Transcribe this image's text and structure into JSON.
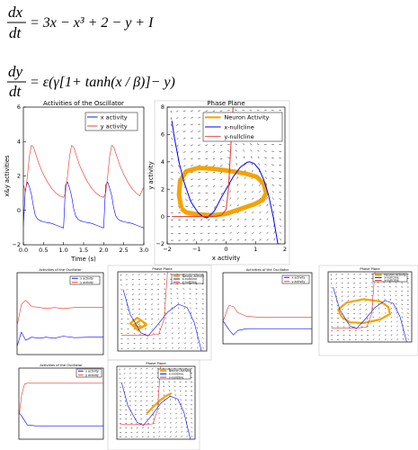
{
  "equations": {
    "eq1_lhs_num": "dx",
    "eq1_lhs_den": "dt",
    "eq1_rhs": "= 3x − x³ + 2 − y + I",
    "eq2_lhs_num": "dy",
    "eq2_lhs_den": "dt",
    "eq2_rhs": "= ε(γ[1+ tanh(x / β)]− y)"
  },
  "colors": {
    "x_activity": "#0000ff",
    "y_activity": "#e8312a",
    "neuron_activity": "#f4a300",
    "x_nullcline": "#0000ff",
    "y_nullcline": "#e8312a",
    "arrows": "#000000",
    "axis": "#000000"
  },
  "chart_data": [
    {
      "id": "activities-main",
      "type": "line",
      "title": "Activities of the Oscillator",
      "xlabel": "Time (s)",
      "ylabel": "x&y activities",
      "xlim": [
        0.0,
        3.0
      ],
      "ylim": [
        -3,
        6
      ],
      "xticks": [
        "0.0",
        "0.5",
        "1.0",
        "1.5",
        "2.0",
        "2.5",
        "3.0"
      ],
      "yticks": [
        "−2",
        "0",
        "2",
        "4",
        "6"
      ],
      "legend": "top-right",
      "series": [
        {
          "name": "x activity",
          "color": "#0000ff",
          "x": [
            0.0,
            0.05,
            0.1,
            0.15,
            0.2,
            0.25,
            0.3,
            0.35,
            0.4,
            0.45,
            0.5,
            0.6,
            0.7,
            0.8,
            0.9,
            1.0,
            1.05,
            1.1,
            1.15,
            1.2,
            1.25,
            1.3,
            1.35,
            1.4,
            1.45,
            1.5,
            1.6,
            1.7,
            1.8,
            1.9,
            2.0,
            2.05,
            2.1,
            2.15,
            2.2,
            2.25,
            2.3,
            2.35,
            2.4,
            2.45,
            2.5,
            2.6,
            2.7,
            2.8,
            2.9,
            3.0
          ],
          "y": [
            -1.8,
            0.6,
            1.1,
            0.8,
            0.3,
            -0.5,
            -1.1,
            -1.3,
            -1.4,
            -1.45,
            -1.5,
            -1.55,
            -1.6,
            -1.7,
            -1.8,
            -1.9,
            0.9,
            1.1,
            0.7,
            0.2,
            -0.6,
            -1.1,
            -1.3,
            -1.4,
            -1.45,
            -1.5,
            -1.55,
            -1.6,
            -1.7,
            -1.8,
            -1.9,
            0.9,
            1.1,
            0.7,
            0.2,
            -0.6,
            -1.1,
            -1.3,
            -1.4,
            -1.45,
            -1.5,
            -1.55,
            -1.6,
            -1.7,
            -1.8,
            -1.9
          ]
        },
        {
          "name": "y activity",
          "color": "#e8312a",
          "x": [
            0.0,
            0.05,
            0.1,
            0.15,
            0.2,
            0.25,
            0.3,
            0.35,
            0.4,
            0.5,
            0.6,
            0.7,
            0.8,
            0.9,
            1.0,
            1.05,
            1.1,
            1.15,
            1.2,
            1.25,
            1.3,
            1.35,
            1.4,
            1.5,
            1.6,
            1.7,
            1.8,
            1.9,
            2.0,
            2.05,
            2.1,
            2.15,
            2.2,
            2.25,
            2.3,
            2.35,
            2.4,
            2.5,
            2.6,
            2.7,
            2.8,
            2.9,
            3.0
          ],
          "y": [
            1.0,
            0.4,
            1.5,
            2.8,
            3.5,
            3.4,
            3.0,
            2.6,
            2.2,
            1.6,
            1.1,
            0.7,
            0.4,
            0.2,
            0.1,
            0.4,
            1.5,
            2.8,
            3.5,
            3.4,
            3.0,
            2.6,
            2.2,
            1.6,
            1.1,
            0.7,
            0.4,
            0.2,
            0.1,
            0.4,
            1.5,
            2.8,
            3.5,
            3.4,
            3.0,
            2.6,
            2.2,
            1.6,
            1.1,
            0.7,
            0.4,
            0.2,
            0.8
          ]
        }
      ]
    },
    {
      "id": "phase-main",
      "type": "line",
      "title": "Phase Plane",
      "xlabel": "x activity",
      "ylabel": "y activity",
      "xlim": [
        -2.5,
        2.5
      ],
      "ylim": [
        -2,
        8
      ],
      "xticks": [
        "−2",
        "−1",
        "0",
        "1",
        "2"
      ],
      "yticks": [
        "−2",
        "0",
        "2",
        "4",
        "6",
        "8"
      ],
      "legend": "top-right",
      "series": [
        {
          "name": "Neuron Activity",
          "color": "#f4a300",
          "x": [
            -1.9,
            -2.0,
            -1.95,
            -1.7,
            -1.2,
            -0.6,
            0.1,
            0.8,
            1.3,
            1.6,
            1.7,
            1.55,
            1.2,
            0.6,
            0.0,
            -0.6,
            -1.2,
            -1.7,
            -1.9
          ],
          "y": [
            0.6,
            1.6,
            2.6,
            3.3,
            3.55,
            3.5,
            3.35,
            3.15,
            2.9,
            2.4,
            1.7,
            1.2,
            0.9,
            0.55,
            0.2,
            0.1,
            0.15,
            0.3,
            0.6
          ]
        },
        {
          "name": "x-nullcline",
          "color": "#0000ff",
          "x": [
            -2.3,
            -2.2,
            -2.0,
            -1.8,
            -1.5,
            -1.2,
            -1.0,
            -0.8,
            -0.5,
            -0.2,
            0.0,
            0.3,
            0.6,
            0.9,
            1.0,
            1.2,
            1.4,
            1.6,
            1.8,
            2.0,
            2.2,
            2.3
          ],
          "y": [
            7.0,
            5.8,
            4.0,
            2.6,
            1.1,
            0.3,
            0.0,
            -0.1,
            0.4,
            1.4,
            2.0,
            2.9,
            3.6,
            3.97,
            4.0,
            3.87,
            3.46,
            2.7,
            1.57,
            0.0,
            -2.0,
            -2.0
          ]
        },
        {
          "name": "y-nullcline",
          "color": "#e8312a",
          "x": [
            -2.3,
            -1.5,
            -0.8,
            -0.4,
            -0.2,
            0.0,
            0.1,
            0.2,
            0.25,
            0.3
          ],
          "y": [
            0.0,
            0.0,
            0.0,
            0.02,
            0.1,
            0.5,
            2.0,
            5.0,
            7.0,
            8.0
          ]
        }
      ]
    },
    {
      "id": "act-small-1",
      "type": "line",
      "title": "Activities of the Oscillator",
      "xlim": [
        0.0,
        3.0
      ],
      "ylim": [
        -2,
        6
      ],
      "legend": "top-right",
      "series": [
        {
          "name": "x activity",
          "color": "#0000ff",
          "x": [
            0.0,
            0.15,
            0.3,
            0.5,
            0.8,
            1.0,
            1.3,
            1.6,
            2.0,
            2.5,
            3.0
          ],
          "y": [
            -1.2,
            0.2,
            -0.6,
            -0.3,
            -0.4,
            -0.3,
            -0.4,
            -0.2,
            -0.35,
            -0.3,
            -0.3
          ]
        },
        {
          "name": "y activity",
          "color": "#e8312a",
          "x": [
            0.0,
            0.15,
            0.3,
            0.5,
            0.8,
            1.0,
            1.3,
            1.6,
            2.0,
            2.5,
            3.0
          ],
          "y": [
            0.8,
            2.9,
            3.3,
            2.7,
            2.6,
            2.5,
            2.6,
            2.5,
            2.6,
            2.6,
            2.6
          ]
        }
      ]
    },
    {
      "id": "phase-small-1",
      "type": "line",
      "title": "Phase Plane",
      "xlim": [
        -2.5,
        2.5
      ],
      "ylim": [
        -2,
        8
      ],
      "legend": "top-right",
      "series": [
        {
          "name": "Neuron Activity",
          "color": "#f4a300",
          "x": [
            -1.3,
            -1.8,
            -1.4,
            -0.9,
            -1.2,
            -1.6,
            -1.2,
            -0.9,
            -1.1,
            -1.3
          ],
          "y": [
            0.5,
            1.5,
            2.2,
            1.4,
            0.9,
            1.3,
            1.9,
            1.3,
            1.0,
            1.2
          ]
        },
        {
          "name": "x-nullcline",
          "color": "#0000ff",
          "x": [
            -2.2,
            -1.8,
            -1.2,
            -0.8,
            -0.3,
            0.3,
            0.9,
            1.4,
            1.8,
            2.2
          ],
          "y": [
            5.8,
            2.6,
            0.3,
            -0.1,
            1.2,
            2.9,
            3.9,
            3.5,
            1.6,
            -2.0
          ]
        },
        {
          "name": "y-nullcline",
          "color": "#e8312a",
          "x": [
            -2.3,
            -0.8,
            -0.2,
            0.1,
            0.3
          ],
          "y": [
            0.0,
            0.0,
            0.1,
            2.0,
            8.0
          ]
        }
      ]
    },
    {
      "id": "act-small-2",
      "type": "line",
      "title": "Activities of the Oscillator",
      "xlim": [
        0.0,
        3.0
      ],
      "ylim": [
        -2,
        6
      ],
      "legend": "top-right",
      "series": [
        {
          "name": "x activity",
          "color": "#0000ff",
          "x": [
            0.0,
            0.2,
            0.35,
            0.5,
            0.8,
            1.2,
            1.6,
            2.0,
            2.5,
            3.0
          ],
          "y": [
            0.6,
            -0.4,
            -1.0,
            -0.5,
            -0.3,
            -0.3,
            -0.3,
            -0.3,
            -0.3,
            -0.3
          ]
        },
        {
          "name": "y activity",
          "color": "#e8312a",
          "x": [
            0.0,
            0.2,
            0.35,
            0.5,
            0.8,
            1.2,
            1.6,
            2.0,
            2.5,
            3.0
          ],
          "y": [
            0.5,
            2.3,
            2.2,
            1.5,
            1.1,
            1.0,
            1.0,
            1.0,
            1.0,
            1.0
          ]
        }
      ]
    },
    {
      "id": "phase-small-2",
      "type": "line",
      "title": "Phase Plane",
      "xlim": [
        -2.5,
        2.5
      ],
      "ylim": [
        -2,
        8
      ],
      "legend": "top-right",
      "series": [
        {
          "name": "Neuron Activity",
          "color": "#f4a300",
          "x": [
            -1.7,
            -1.9,
            -1.4,
            -0.4,
            0.6,
            1.1,
            1.2,
            0.6,
            -0.4,
            -1.2,
            -1.7
          ],
          "y": [
            1.6,
            2.6,
            3.6,
            4.1,
            3.8,
            3.0,
            2.0,
            1.2,
            0.7,
            0.8,
            1.6
          ]
        },
        {
          "name": "x-nullcline",
          "color": "#0000ff",
          "x": [
            -2.2,
            -1.8,
            -1.2,
            -0.8,
            -0.3,
            0.3,
            0.9,
            1.4,
            1.8,
            2.2
          ],
          "y": [
            5.8,
            2.6,
            0.3,
            -0.1,
            1.2,
            2.9,
            3.9,
            3.5,
            1.6,
            -2.0
          ]
        },
        {
          "name": "y-nullcline",
          "color": "#e8312a",
          "x": [
            -2.3,
            -0.8,
            -0.2,
            0.1,
            0.3
          ],
          "y": [
            0.0,
            0.0,
            0.1,
            2.0,
            8.0
          ]
        }
      ]
    },
    {
      "id": "act-small-3",
      "type": "line",
      "title": "Activities of the Oscillator",
      "xlim": [
        0.0,
        3.0
      ],
      "ylim": [
        -2,
        6
      ],
      "legend": "top-right",
      "series": [
        {
          "name": "x activity",
          "color": "#0000ff",
          "x": [
            0.0,
            0.1,
            0.2,
            0.3,
            0.6,
            1.0,
            1.5,
            2.0,
            2.5,
            3.0
          ],
          "y": [
            1.0,
            0.6,
            0.1,
            -0.4,
            -0.5,
            -0.5,
            -0.5,
            -0.5,
            -0.5,
            -0.5
          ]
        },
        {
          "name": "y activity",
          "color": "#e8312a",
          "x": [
            0.0,
            0.1,
            0.2,
            0.3,
            0.6,
            1.0,
            1.5,
            2.0,
            2.5,
            3.0
          ],
          "y": [
            0.5,
            3.0,
            4.2,
            4.3,
            4.3,
            4.3,
            4.3,
            4.3,
            4.3,
            4.3
          ]
        }
      ]
    },
    {
      "id": "phase-small-3",
      "type": "line",
      "title": "Phase Plane",
      "xlim": [
        -2.5,
        2.5
      ],
      "ylim": [
        -2,
        8
      ],
      "legend": "top-right",
      "series": [
        {
          "name": "Neuron Activity",
          "color": "#f4a300",
          "x": [
            -0.6,
            -0.2,
            0.3,
            0.7,
            1.0
          ],
          "y": [
            1.5,
            2.4,
            3.4,
            4.0,
            4.3
          ]
        },
        {
          "name": "x-nullcline",
          "color": "#0000ff",
          "x": [
            -2.2,
            -1.8,
            -1.2,
            -0.8,
            -0.3,
            0.3,
            0.9,
            1.4,
            1.8,
            2.2
          ],
          "y": [
            5.8,
            2.6,
            0.3,
            -0.1,
            1.2,
            2.9,
            3.9,
            3.5,
            1.6,
            -2.0
          ]
        },
        {
          "name": "y-nullcline",
          "color": "#e8312a",
          "x": [
            -2.3,
            -0.8,
            -0.2,
            0.1,
            0.3
          ],
          "y": [
            0.0,
            0.0,
            0.1,
            2.0,
            8.0
          ]
        }
      ]
    }
  ]
}
